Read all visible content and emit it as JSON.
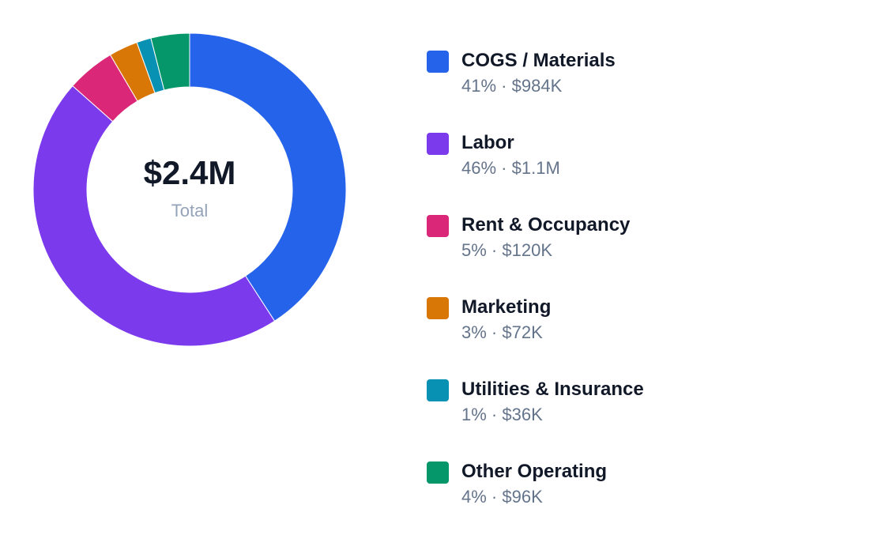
{
  "chart_data": {
    "type": "donut",
    "categories": [
      "COGS / Materials",
      "Labor",
      "Rent & Occupancy",
      "Marketing",
      "Utilities & Insurance",
      "Other Operating"
    ],
    "values": [
      984000,
      1100000,
      120000,
      72000,
      36000,
      96000
    ],
    "value_labels": [
      "$984K",
      "$1.1M",
      "$120K",
      "$72K",
      "$36K",
      "$96K"
    ],
    "percents": [
      41,
      46,
      5,
      3,
      1,
      4
    ],
    "percent_labels": [
      "41%",
      "46%",
      "5%",
      "3%",
      "1%",
      "4%"
    ],
    "separator": "·",
    "colors": [
      "#2563eb",
      "#7c3aed",
      "#db2777",
      "#d97706",
      "#0891b2",
      "#059669"
    ],
    "total": {
      "value": 2400000,
      "label": "$2.4M",
      "caption": "Total"
    },
    "legend": "right"
  }
}
